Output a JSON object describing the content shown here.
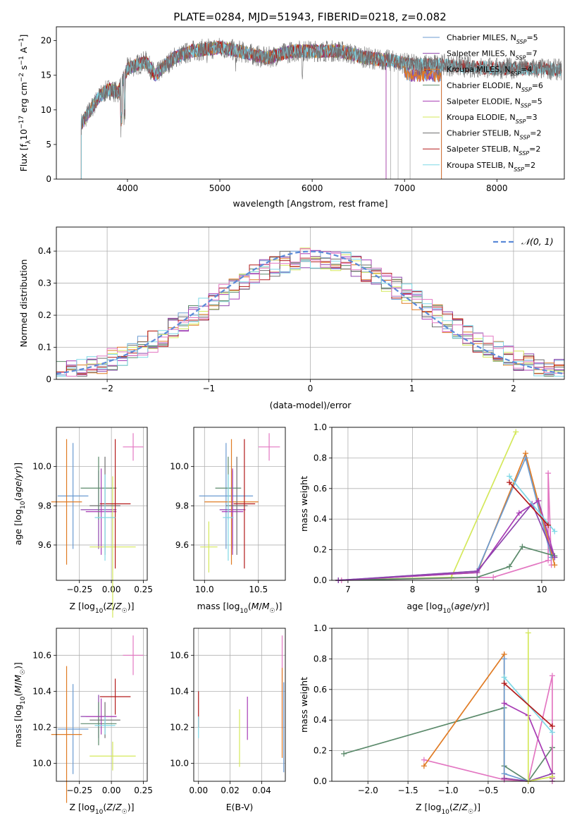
{
  "figure": {
    "title": "PLATE=0284, MJD=51943, FIBERID=0218, z=0.082"
  },
  "colors": {
    "Chabrier MILES": "#6b9bd1",
    "Salpeter MILES": "#8e44ad",
    "Kroupa MILES": "#e07b24",
    "Chabrier ELODIE": "#5b8a6b",
    "Salpeter ELODIE": "#a83cb5",
    "Kroupa ELODIE": "#d4e85a",
    "Chabrier STELIB": "#6e6e6e",
    "Salpeter STELIB": "#b31b1b",
    "Kroupa STELIB": "#7fd8e6",
    "pink": "#e377c2",
    "gaussian": "#5b8ad8"
  },
  "chart_data": [
    {
      "type": "line",
      "panel": "spectrum",
      "xlabel": "wavelength [Angstrom, rest frame]",
      "ylabel": "Flux [f_λ10^-17 erg cm^-2 s^-1 A^-1]",
      "xlim": [
        3230,
        8730
      ],
      "ylim": [
        0,
        22
      ],
      "xticks": [
        4000,
        5000,
        6000,
        7000,
        8000
      ],
      "yticks": [
        0,
        5,
        10,
        15,
        20
      ],
      "grid": false,
      "legend_position": "top-right",
      "series": [
        {
          "name": "Chabrier MILES, N_SSP=5",
          "color_key": "Chabrier MILES",
          "end": 7400
        },
        {
          "name": "Salpeter MILES, N_SSP=7",
          "color_key": "Salpeter MILES",
          "end": 7400
        },
        {
          "name": "Kroupa MILES, N_SSP=4",
          "color_key": "Kroupa MILES",
          "end": 7400
        },
        {
          "name": "Chabrier ELODIE, N_SSP=6",
          "color_key": "Chabrier ELODIE",
          "end": 6800
        },
        {
          "name": "Salpeter ELODIE, N_SSP=5",
          "color_key": "Salpeter ELODIE",
          "end": 6800
        },
        {
          "name": "Kroupa ELODIE, N_SSP=3",
          "color_key": "Kroupa ELODIE",
          "end": 6800
        },
        {
          "name": "Chabrier STELIB, N_SSP=2",
          "color_key": "Chabrier STELIB",
          "end": 8700
        },
        {
          "name": "Salpeter STELIB, N_SSP=2",
          "color_key": "Salpeter STELIB",
          "end": 8700
        },
        {
          "name": "Kroupa STELIB, N_SSP=2",
          "color_key": "Kroupa STELIB",
          "end": 8700
        }
      ],
      "continuum": {
        "x": [
          3500,
          3600,
          3700,
          3800,
          3900,
          4000,
          4100,
          4200,
          4300,
          4500,
          4700,
          5000,
          5200,
          5500,
          5800,
          6000,
          6300,
          6600,
          6900,
          7100,
          7400,
          7700,
          8000,
          8300,
          8700
        ],
        "y": [
          8,
          10,
          12,
          13,
          12.5,
          16,
          16.5,
          17,
          15,
          17.5,
          18.5,
          19,
          18.5,
          17.5,
          18.5,
          18.5,
          18.5,
          17.5,
          17,
          16.5,
          16.5,
          16.2,
          16,
          16,
          15.8
        ]
      }
    },
    {
      "type": "bar",
      "panel": "residuals",
      "xlabel": "(data-model)/error",
      "ylabel": "Normed distribution",
      "xlim": [
        -2.5,
        2.5
      ],
      "ylim": [
        0,
        0.475
      ],
      "xticks": [
        -2,
        -1,
        0,
        1,
        2
      ],
      "yticks": [
        0,
        0.1,
        0.2,
        0.3,
        0.4
      ],
      "grid": true,
      "bin_width": 0.1,
      "legend": "𝒩(0, 1)",
      "legend_position": "top-right"
    },
    {
      "type": "scatter",
      "panel": "age-vs-Z",
      "xlabel": "Z [log10(Z/Z☉)]",
      "ylabel": "age [log10(age/yr)]",
      "xlim": [
        -0.43,
        0.28
      ],
      "ylim": [
        9.42,
        10.2
      ],
      "xticks": [
        -0.25,
        0,
        0.25
      ],
      "xtick_labels": [
        "−0.25",
        "0.00",
        "0.25"
      ],
      "yticks": [
        9.6,
        9.8,
        10.0
      ],
      "points": [
        {
          "c": "Chabrier MILES",
          "x": -0.3,
          "y": 9.85,
          "xerr": 0.12,
          "yerr": 0.27
        },
        {
          "c": "Salpeter MILES",
          "x": -0.1,
          "y": 9.78,
          "xerr": 0.14,
          "yerr": 0.2
        },
        {
          "c": "Kroupa MILES",
          "x": -0.35,
          "y": 9.82,
          "xerr": 0.12,
          "yerr": 0.32
        },
        {
          "c": "Chabrier ELODIE",
          "x": -0.1,
          "y": 9.89,
          "xerr": 0.14,
          "yerr": 0.16
        },
        {
          "c": "Salpeter ELODIE",
          "x": -0.08,
          "y": 9.77,
          "xerr": 0.12,
          "yerr": 0.22
        },
        {
          "c": "Kroupa ELODIE",
          "x": 0.01,
          "y": 9.59,
          "xerr": 0.18,
          "yerr": 0.36
        },
        {
          "c": "Chabrier STELIB",
          "x": -0.05,
          "y": 9.8,
          "xerr": 0.12,
          "yerr": 0.25
        },
        {
          "c": "Salpeter STELIB",
          "x": 0.03,
          "y": 9.81,
          "xerr": 0.12,
          "yerr": 0.33
        },
        {
          "c": "Kroupa STELIB",
          "x": -0.05,
          "y": 9.74,
          "xerr": 0.08,
          "yerr": 0.22
        },
        {
          "c": "pink",
          "x": 0.17,
          "y": 10.1,
          "xerr": 0.08,
          "yerr": 0.07
        }
      ]
    },
    {
      "type": "scatter",
      "panel": "age-vs-mass",
      "xlabel": "mass [log10(M/M☉)]",
      "ylabel": "",
      "xlim": [
        9.9,
        10.75
      ],
      "ylim": [
        9.42,
        10.2
      ],
      "xticks": [
        10.0,
        10.5
      ],
      "xtick_labels": [
        "10.0",
        "10.5"
      ],
      "yticks": [
        9.6,
        9.8,
        10.0
      ],
      "points": [
        {
          "c": "Chabrier MILES",
          "x": 10.2,
          "y": 9.85,
          "xerr": 0.25,
          "yerr": 0.27
        },
        {
          "c": "Salpeter MILES",
          "x": 10.26,
          "y": 9.78,
          "xerr": 0.12,
          "yerr": 0.2
        },
        {
          "c": "Kroupa MILES",
          "x": 10.25,
          "y": 9.82,
          "xerr": 0.25,
          "yerr": 0.32
        },
        {
          "c": "Chabrier ELODIE",
          "x": 10.22,
          "y": 9.89,
          "xerr": 0.12,
          "yerr": 0.16
        },
        {
          "c": "Salpeter ELODIE",
          "x": 10.26,
          "y": 9.77,
          "xerr": 0.1,
          "yerr": 0.22
        },
        {
          "c": "Kroupa ELODIE",
          "x": 10.04,
          "y": 9.59,
          "xerr": 0.08,
          "yerr": 0.13
        },
        {
          "c": "Chabrier STELIB",
          "x": 10.3,
          "y": 9.8,
          "xerr": 0.1,
          "yerr": 0.25
        },
        {
          "c": "Salpeter STELIB",
          "x": 10.37,
          "y": 9.81,
          "xerr": 0.1,
          "yerr": 0.33
        },
        {
          "c": "Kroupa STELIB",
          "x": 10.22,
          "y": 9.74,
          "xerr": 0.05,
          "yerr": 0.22
        },
        {
          "c": "pink",
          "x": 10.6,
          "y": 10.1,
          "xerr": 0.1,
          "yerr": 0.07
        }
      ]
    },
    {
      "type": "line",
      "panel": "mass-weight-vs-age",
      "xlabel": "age [log10(age/yr)]",
      "ylabel": "mass weight",
      "xlim": [
        6.75,
        10.35
      ],
      "ylim": [
        0,
        1
      ],
      "xticks": [
        7,
        8,
        9,
        10
      ],
      "yticks": [
        0,
        0.2,
        0.4,
        0.6,
        0.8,
        1.0
      ],
      "grid": true,
      "series": [
        {
          "c": "Kroupa ELODIE",
          "x": [
            6.85,
            8.6,
            9.6
          ],
          "y": [
            0.0,
            0.02,
            0.97
          ]
        },
        {
          "c": "pink",
          "x": [
            6.9,
            9.25,
            10.1,
            10.1,
            10.15
          ],
          "y": [
            0.0,
            0.02,
            0.13,
            0.7,
            0.1
          ]
        },
        {
          "c": "Kroupa MILES",
          "x": [
            6.85,
            9.0,
            9.75,
            10.2
          ],
          "y": [
            0.0,
            0.05,
            0.83,
            0.1
          ]
        },
        {
          "c": "Chabrier MILES",
          "x": [
            6.85,
            9.0,
            9.75,
            10.15
          ],
          "y": [
            0.0,
            0.06,
            0.8,
            0.15
          ]
        },
        {
          "c": "Chabrier ELODIE",
          "x": [
            6.85,
            9.0,
            9.5,
            9.7,
            10.2
          ],
          "y": [
            0.0,
            0.02,
            0.09,
            0.22,
            0.16
          ]
        },
        {
          "c": "Salpeter ELODIE",
          "x": [
            6.85,
            9.0,
            9.65,
            9.95,
            10.2
          ],
          "y": [
            0.0,
            0.05,
            0.44,
            0.52,
            0.15
          ]
        },
        {
          "c": "Salpeter MILES",
          "x": [
            6.85,
            9.0,
            9.85,
            10.2
          ],
          "y": [
            0.0,
            0.06,
            0.5,
            0.15
          ]
        },
        {
          "c": "Kroupa STELIB",
          "x": [
            9.5,
            10.2
          ],
          "y": [
            0.68,
            0.32
          ]
        },
        {
          "c": "Salpeter STELIB",
          "x": [
            9.5,
            10.1
          ],
          "y": [
            0.64,
            0.36
          ]
        }
      ]
    },
    {
      "type": "scatter",
      "panel": "mass-vs-Z",
      "xlabel": "Z [log10(Z/Z☉)]",
      "ylabel": "mass [log10(M/M☉)]",
      "xlim": [
        -0.43,
        0.28
      ],
      "ylim": [
        9.9,
        10.75
      ],
      "xticks": [
        -0.25,
        0,
        0.25
      ],
      "xtick_labels": [
        "−0.25",
        "0.00",
        "0.25"
      ],
      "yticks": [
        10.0,
        10.2,
        10.4,
        10.6
      ],
      "points": [
        {
          "c": "Chabrier MILES",
          "x": -0.3,
          "y": 10.19,
          "xerr": 0.12,
          "yerr": 0.25
        },
        {
          "c": "Salpeter MILES",
          "x": -0.1,
          "y": 10.26,
          "xerr": 0.14,
          "yerr": 0.12
        },
        {
          "c": "Kroupa MILES",
          "x": -0.35,
          "y": 10.16,
          "xerr": 0.12,
          "yerr": 0.38
        },
        {
          "c": "Chabrier ELODIE",
          "x": -0.1,
          "y": 10.22,
          "xerr": 0.14,
          "yerr": 0.12
        },
        {
          "c": "Salpeter ELODIE",
          "x": -0.08,
          "y": 10.26,
          "xerr": 0.12,
          "yerr": 0.1
        },
        {
          "c": "Kroupa ELODIE",
          "x": 0.01,
          "y": 10.04,
          "xerr": 0.18,
          "yerr": 0.08
        },
        {
          "c": "Chabrier STELIB",
          "x": -0.05,
          "y": 10.24,
          "xerr": 0.12,
          "yerr": 0.1
        },
        {
          "c": "Salpeter STELIB",
          "x": 0.03,
          "y": 10.37,
          "xerr": 0.12,
          "yerr": 0.1
        },
        {
          "c": "Kroupa STELIB",
          "x": -0.05,
          "y": 10.21,
          "xerr": 0.08,
          "yerr": 0.05
        },
        {
          "c": "pink",
          "x": 0.17,
          "y": 10.6,
          "xerr": 0.08,
          "yerr": 0.11
        }
      ]
    },
    {
      "type": "scatter",
      "panel": "mass-vs-EBV",
      "xlabel": "E(B-V)",
      "ylabel": "",
      "xlim": [
        -0.003,
        0.055
      ],
      "ylim": [
        9.9,
        10.75
      ],
      "xticks": [
        0,
        0.02,
        0.04
      ],
      "xtick_labels": [
        "0.00",
        "0.02",
        "0.04"
      ],
      "yticks": [
        10.0,
        10.2,
        10.4,
        10.6
      ],
      "points": [
        {
          "c": "Salpeter STELIB",
          "x": 0.0,
          "y": 10.3,
          "xerr": 0,
          "yerr": 0.1
        },
        {
          "c": "Kroupa STELIB",
          "x": 0.0,
          "y": 10.2,
          "xerr": 0,
          "yerr": 0.06
        },
        {
          "c": "Kroupa ELODIE",
          "x": 0.026,
          "y": 10.14,
          "xerr": 0,
          "yerr": 0.16
        },
        {
          "c": "Salpeter ELODIE",
          "x": 0.031,
          "y": 10.25,
          "xerr": 0,
          "yerr": 0.12
        },
        {
          "c": "pink",
          "x": 0.053,
          "y": 10.45,
          "xerr": 0,
          "yerr": 0.26
        },
        {
          "c": "Chabrier MILES",
          "x": 0.054,
          "y": 10.2,
          "xerr": 0,
          "yerr": 0.25
        },
        {
          "c": "Kroupa MILES",
          "x": 0.053,
          "y": 10.28,
          "xerr": 0,
          "yerr": 0.25
        }
      ]
    },
    {
      "type": "line",
      "panel": "mass-weight-vs-Z",
      "xlabel": "Z [log10(Z/Z☉)]",
      "ylabel": "mass weight",
      "xlim": [
        -2.45,
        0.45
      ],
      "ylim": [
        0,
        1
      ],
      "xticks": [
        -2.0,
        -1.5,
        -1.0,
        -0.5,
        0.0
      ],
      "xtick_labels": [
        "−2.0",
        "−1.5",
        "−1.0",
        "−0.5",
        "0.0"
      ],
      "yticks": [
        0,
        0.2,
        0.4,
        0.6,
        0.8,
        1.0
      ],
      "grid": true,
      "series": [
        {
          "c": "Chabrier ELODIE",
          "x": [
            -2.3,
            -0.3,
            -0.3,
            0.0,
            0.3,
            0.3,
            0.3
          ],
          "y": [
            0.18,
            0.48,
            0.1,
            0.0,
            0.22,
            0.0,
            0.22
          ]
        },
        {
          "c": "pink",
          "x": [
            -1.3,
            -0.3,
            0.0,
            0.3,
            0.3
          ],
          "y": [
            0.14,
            0.01,
            0.0,
            0.69,
            0.0
          ]
        },
        {
          "c": "Kroupa MILES",
          "x": [
            -1.3,
            -0.3,
            -0.3,
            0.0
          ],
          "y": [
            0.1,
            0.83,
            0.02,
            0.0
          ]
        },
        {
          "c": "Chabrier MILES",
          "x": [
            -0.3,
            -0.3,
            0.0
          ],
          "y": [
            0.8,
            0.05,
            0.0
          ]
        },
        {
          "c": "Salpeter ELODIE",
          "x": [
            -0.3,
            0.0,
            0.3,
            0.3
          ],
          "y": [
            0.51,
            0.43,
            0.05,
            0.02
          ]
        },
        {
          "c": "Salpeter MILES",
          "x": [
            -0.3,
            0.0,
            0.3
          ],
          "y": [
            0.02,
            0.0,
            0.05
          ]
        },
        {
          "c": "Kroupa ELODIE",
          "x": [
            0.0,
            0.0,
            0.3
          ],
          "y": [
            0.97,
            0.0,
            0.03
          ]
        },
        {
          "c": "Kroupa STELIB",
          "x": [
            -0.3,
            0.3
          ],
          "y": [
            0.68,
            0.32
          ]
        },
        {
          "c": "Salpeter STELIB",
          "x": [
            -0.3,
            0.3
          ],
          "y": [
            0.64,
            0.36
          ]
        }
      ]
    }
  ]
}
